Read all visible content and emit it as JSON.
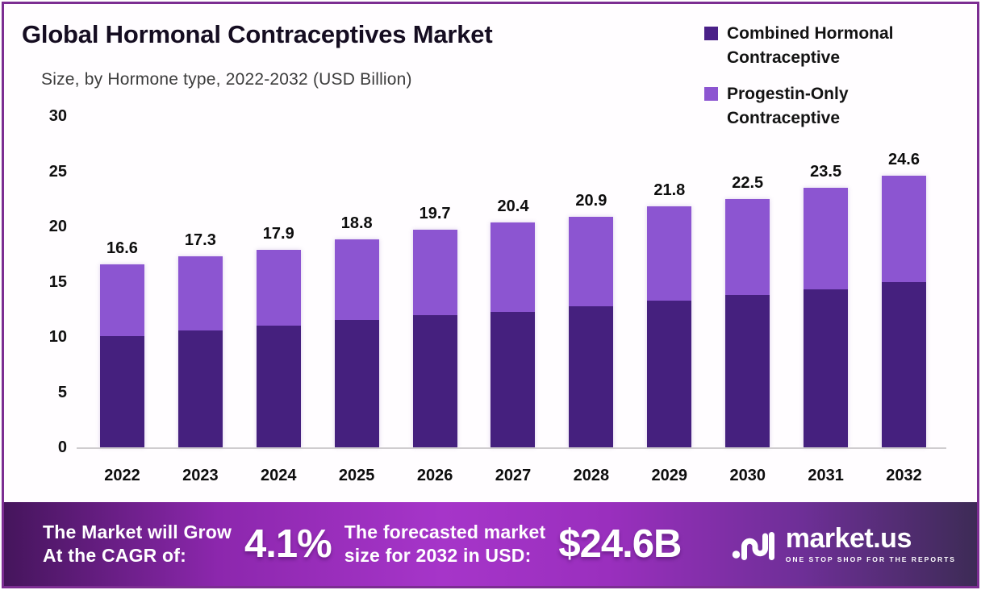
{
  "header": {
    "title": "Global Hormonal Contraceptives Market",
    "subtitle": "Size, by Hormone type, 2022-2032 (USD Billion)"
  },
  "legend": {
    "items": [
      {
        "label": "Combined Hormonal Contraceptive",
        "color": "#4a2088"
      },
      {
        "label": "Progestin-Only Contraceptive",
        "color": "#8c55d1"
      }
    ]
  },
  "chart_data": {
    "type": "bar",
    "stacked": true,
    "title": "Global Hormonal Contraceptives Market",
    "subtitle": "Size, by Hormone type, 2022-2032 (USD Billion)",
    "xlabel": "",
    "ylabel": "",
    "units": "USD Billion",
    "ylim": [
      0,
      30
    ],
    "ytick_step": 5,
    "grid": false,
    "legend_position": "top-right",
    "categories": [
      "2022",
      "2023",
      "2024",
      "2025",
      "2026",
      "2027",
      "2028",
      "2029",
      "2030",
      "2031",
      "2032"
    ],
    "series": [
      {
        "name": "Combined Hormonal Contraceptive",
        "color": "#45207e",
        "values": [
          10.1,
          10.6,
          11.0,
          11.5,
          12.0,
          12.3,
          12.8,
          13.3,
          13.8,
          14.3,
          15.0
        ]
      },
      {
        "name": "Progestin-Only Contraceptive",
        "color": "#8c55d1",
        "values": [
          6.5,
          6.7,
          6.9,
          7.3,
          7.7,
          8.1,
          8.1,
          8.5,
          8.7,
          9.2,
          9.6
        ]
      }
    ],
    "totals": [
      16.6,
      17.3,
      17.9,
      18.8,
      19.7,
      20.4,
      20.9,
      21.8,
      22.5,
      23.5,
      24.6
    ],
    "total_labels": [
      "16.6",
      "17.3",
      "17.9",
      "18.8",
      "19.7",
      "20.4",
      "20.9",
      "21.8",
      "22.5",
      "23.5",
      "24.6"
    ]
  },
  "banner": {
    "cagr_line1": "The Market will Grow",
    "cagr_line2": "At the CAGR of:",
    "cagr_value": "4.1%",
    "forecast_line1": "The forecasted market",
    "forecast_line2": "size for 2032 in USD:",
    "forecast_value": "$24.6B",
    "brand_name": "market.us",
    "brand_tagline": "ONE STOP SHOP FOR THE REPORTS"
  },
  "colors": {
    "frame_border": "#7c2d92",
    "baseline": "#cfcccf",
    "banner_gradient_left": "#45155c",
    "banner_gradient_center": "#a635c9",
    "banner_gradient_right": "#3d2b56",
    "text_dark": "#131313",
    "text_light": "#ffffff"
  }
}
